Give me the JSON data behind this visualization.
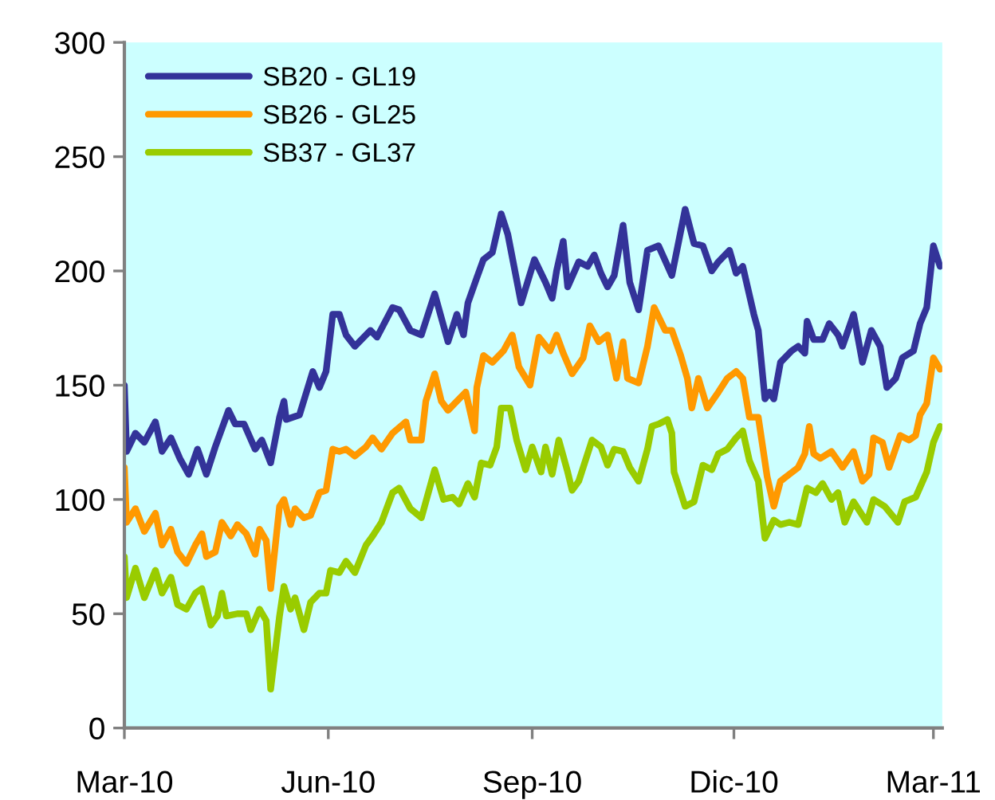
{
  "chart_data": {
    "type": "line",
    "xlim": [
      "2010-03-01",
      "2011-03-05"
    ],
    "ylim": [
      0,
      300
    ],
    "yticks": [
      0,
      50,
      100,
      150,
      200,
      250,
      300
    ],
    "xticks": [
      {
        "value": "2010-03-01",
        "label": "Mar-10"
      },
      {
        "value": "2010-06-01",
        "label": "Jun-10"
      },
      {
        "value": "2010-09-01",
        "label": "Sep-10"
      },
      {
        "value": "2010-12-01",
        "label": "Dic-10"
      },
      {
        "value": "2011-03-01",
        "label": "Mar-11"
      }
    ],
    "grid": false,
    "legend": "top left",
    "series": [
      {
        "name": "SB20 - GL19",
        "color": "#333399",
        "x": [
          "2010-03-01",
          "2010-03-02",
          "2010-03-06",
          "2010-03-10",
          "2010-03-15",
          "2010-03-18",
          "2010-03-22",
          "2010-03-26",
          "2010-03-30",
          "2010-04-03",
          "2010-04-07",
          "2010-04-11",
          "2010-04-17",
          "2010-04-20",
          "2010-04-24",
          "2010-04-29",
          "2010-05-02",
          "2010-05-06",
          "2010-05-10",
          "2010-05-12",
          "2010-05-13",
          "2010-05-19",
          "2010-05-25",
          "2010-05-28",
          "2010-05-31",
          "2010-06-03",
          "2010-06-06",
          "2010-06-09",
          "2010-06-13",
          "2010-06-20",
          "2010-06-23",
          "2010-06-30",
          "2010-07-03",
          "2010-07-08",
          "2010-07-13",
          "2010-07-19",
          "2010-07-25",
          "2010-07-29",
          "2010-08-01",
          "2010-08-03",
          "2010-08-07",
          "2010-08-10",
          "2010-08-14",
          "2010-08-18",
          "2010-08-21",
          "2010-08-27",
          "2010-09-02",
          "2010-09-07",
          "2010-09-10",
          "2010-09-12",
          "2010-09-15",
          "2010-09-17",
          "2010-09-22",
          "2010-09-26",
          "2010-09-29",
          "2010-10-02",
          "2010-10-05",
          "2010-10-08",
          "2010-10-12",
          "2010-10-15",
          "2010-10-19",
          "2010-10-23",
          "2010-10-28",
          "2010-11-03",
          "2010-11-09",
          "2010-11-13",
          "2010-11-17",
          "2010-11-21",
          "2010-11-24",
          "2010-11-29",
          "2010-12-02",
          "2010-12-05",
          "2010-12-10",
          "2010-12-12",
          "2010-12-15",
          "2010-12-17",
          "2010-12-19",
          "2010-12-22",
          "2010-12-27",
          "2010-12-30",
          "2011-01-02",
          "2011-01-03",
          "2011-01-06",
          "2011-01-10",
          "2011-01-13",
          "2011-01-17",
          "2011-01-19",
          "2011-01-24",
          "2011-01-28",
          "2011-02-01",
          "2011-02-05",
          "2011-02-08",
          "2011-02-12",
          "2011-02-15",
          "2011-02-20",
          "2011-02-23",
          "2011-02-26",
          "2011-03-01",
          "2011-03-04"
        ],
        "values": [
          150,
          121,
          129,
          125,
          134,
          121,
          127,
          118,
          111,
          122,
          111,
          123,
          139,
          133,
          133,
          122,
          126,
          116,
          136,
          143,
          135,
          137,
          156,
          149,
          156,
          181,
          181,
          172,
          167,
          174,
          171,
          184,
          183,
          174,
          172,
          190,
          169,
          181,
          172,
          186,
          197,
          205,
          208,
          225,
          216,
          186,
          205,
          195,
          188,
          200,
          213,
          193,
          204,
          202,
          207,
          199,
          193,
          198,
          220,
          195,
          183,
          209,
          211,
          198,
          227,
          212,
          211,
          200,
          204,
          209,
          199,
          202,
          181,
          174,
          144,
          147,
          144,
          160,
          165,
          167,
          164,
          178,
          170,
          170,
          177,
          172,
          167,
          181,
          160,
          174,
          167,
          149,
          153,
          162,
          165,
          177,
          184,
          211,
          202
        ]
      },
      {
        "name": "SB26 - GL25",
        "color": "#ff9900",
        "x": [
          "2010-03-01",
          "2010-03-02",
          "2010-03-06",
          "2010-03-10",
          "2010-03-15",
          "2010-03-18",
          "2010-03-22",
          "2010-03-25",
          "2010-03-29",
          "2010-04-02",
          "2010-04-05",
          "2010-04-07",
          "2010-04-11",
          "2010-04-14",
          "2010-04-18",
          "2010-04-21",
          "2010-04-25",
          "2010-04-29",
          "2010-05-01",
          "2010-05-04",
          "2010-05-06",
          "2010-05-10",
          "2010-05-12",
          "2010-05-15",
          "2010-05-17",
          "2010-05-21",
          "2010-05-24",
          "2010-05-28",
          "2010-05-31",
          "2010-06-03",
          "2010-06-06",
          "2010-06-09",
          "2010-06-13",
          "2010-06-18",
          "2010-06-21",
          "2010-06-25",
          "2010-06-30",
          "2010-07-06",
          "2010-07-08",
          "2010-07-13",
          "2010-07-15",
          "2010-07-19",
          "2010-07-22",
          "2010-07-25",
          "2010-07-28",
          "2010-08-02",
          "2010-08-06",
          "2010-08-07",
          "2010-08-10",
          "2010-08-14",
          "2010-08-19",
          "2010-08-23",
          "2010-08-26",
          "2010-08-31",
          "2010-09-04",
          "2010-09-09",
          "2010-09-12",
          "2010-09-15",
          "2010-09-19",
          "2010-09-24",
          "2010-09-27",
          "2010-10-01",
          "2010-10-05",
          "2010-10-09",
          "2010-10-12",
          "2010-10-14",
          "2010-10-19",
          "2010-10-23",
          "2010-10-26",
          "2010-10-31",
          "2010-11-03",
          "2010-11-07",
          "2010-11-10",
          "2010-11-12",
          "2010-11-15",
          "2010-11-19",
          "2010-11-24",
          "2010-11-28",
          "2010-12-02",
          "2010-12-05",
          "2010-12-08",
          "2010-12-12",
          "2010-12-16",
          "2010-12-19",
          "2010-12-22",
          "2010-12-26",
          "2010-12-30",
          "2011-01-02",
          "2011-01-04",
          "2011-01-06",
          "2011-01-09",
          "2011-01-14",
          "2011-01-19",
          "2011-01-24",
          "2011-01-28",
          "2011-01-31",
          "2011-02-02",
          "2011-02-06",
          "2011-02-09",
          "2011-02-14",
          "2011-02-18",
          "2011-02-21",
          "2011-02-23",
          "2011-02-26",
          "2011-03-01",
          "2011-03-04"
        ],
        "values": [
          114,
          90,
          96,
          86,
          94,
          80,
          87,
          77,
          72,
          80,
          85,
          75,
          77,
          90,
          84,
          89,
          85,
          76,
          87,
          82,
          61,
          97,
          100,
          89,
          96,
          92,
          93,
          103,
          104,
          122,
          121,
          122,
          119,
          123,
          127,
          122,
          129,
          134,
          126,
          126,
          143,
          155,
          143,
          139,
          142,
          147,
          130,
          149,
          163,
          160,
          165,
          172,
          158,
          150,
          171,
          165,
          172,
          164,
          155,
          162,
          176,
          169,
          172,
          153,
          169,
          153,
          151,
          167,
          184,
          174,
          174,
          163,
          153,
          140,
          153,
          140,
          147,
          153,
          156,
          153,
          136,
          136,
          110,
          97,
          108,
          111,
          114,
          120,
          132,
          120,
          118,
          121,
          114,
          121,
          108,
          111,
          127,
          125,
          114,
          128,
          126,
          128,
          137,
          142,
          162,
          157
        ]
      },
      {
        "name": "SB37 - GL37",
        "color": "#99cc00",
        "x": [
          "2010-03-01",
          "2010-03-02",
          "2010-03-06",
          "2010-03-10",
          "2010-03-15",
          "2010-03-18",
          "2010-03-22",
          "2010-03-25",
          "2010-03-29",
          "2010-04-02",
          "2010-04-05",
          "2010-04-09",
          "2010-04-12",
          "2010-04-14",
          "2010-04-16",
          "2010-04-21",
          "2010-04-25",
          "2010-04-27",
          "2010-05-01",
          "2010-05-04",
          "2010-05-06",
          "2010-05-10",
          "2010-05-12",
          "2010-05-15",
          "2010-05-17",
          "2010-05-21",
          "2010-05-24",
          "2010-05-28",
          "2010-05-31",
          "2010-06-02",
          "2010-06-06",
          "2010-06-09",
          "2010-06-13",
          "2010-06-18",
          "2010-06-21",
          "2010-06-25",
          "2010-06-30",
          "2010-07-03",
          "2010-07-08",
          "2010-07-13",
          "2010-07-19",
          "2010-07-23",
          "2010-07-27",
          "2010-07-30",
          "2010-08-03",
          "2010-08-06",
          "2010-08-09",
          "2010-08-13",
          "2010-08-16",
          "2010-08-18",
          "2010-08-22",
          "2010-08-25",
          "2010-08-29",
          "2010-09-01",
          "2010-09-05",
          "2010-09-07",
          "2010-09-10",
          "2010-09-13",
          "2010-09-17",
          "2010-09-19",
          "2010-09-22",
          "2010-09-28",
          "2010-10-02",
          "2010-10-05",
          "2010-10-08",
          "2010-10-12",
          "2010-10-15",
          "2010-10-19",
          "2010-10-23",
          "2010-10-25",
          "2010-10-28",
          "2010-11-01",
          "2010-11-03",
          "2010-11-04",
          "2010-11-09",
          "2010-11-13",
          "2010-11-17",
          "2010-11-21",
          "2010-11-24",
          "2010-11-28",
          "2010-12-02",
          "2010-12-05",
          "2010-12-08",
          "2010-12-12",
          "2010-12-15",
          "2010-12-19",
          "2010-12-22",
          "2010-12-26",
          "2010-12-30",
          "2011-01-03",
          "2011-01-07",
          "2011-01-10",
          "2011-01-14",
          "2011-01-17",
          "2011-01-20",
          "2011-01-24",
          "2011-01-30",
          "2011-02-02",
          "2011-02-07",
          "2011-02-13",
          "2011-02-16",
          "2011-02-21",
          "2011-02-26",
          "2011-03-01",
          "2011-03-04"
        ],
        "values": [
          75,
          57,
          70,
          57,
          69,
          59,
          66,
          54,
          52,
          59,
          61,
          45,
          49,
          59,
          49,
          50,
          50,
          43,
          52,
          47,
          17,
          49,
          62,
          52,
          57,
          43,
          55,
          59,
          59,
          69,
          68,
          73,
          68,
          80,
          84,
          90,
          103,
          105,
          96,
          92,
          113,
          100,
          101,
          98,
          107,
          101,
          116,
          115,
          123,
          140,
          140,
          126,
          113,
          123,
          112,
          123,
          111,
          126,
          112,
          104,
          108,
          126,
          123,
          115,
          122,
          121,
          114,
          108,
          122,
          132,
          133,
          135,
          129,
          112,
          97,
          99,
          115,
          113,
          120,
          122,
          127,
          130,
          117,
          108,
          83,
          91,
          89,
          90,
          89,
          105,
          103,
          107,
          100,
          103,
          90,
          99,
          90,
          100,
          97,
          90,
          99,
          101,
          112,
          125,
          132
        ]
      }
    ]
  }
}
